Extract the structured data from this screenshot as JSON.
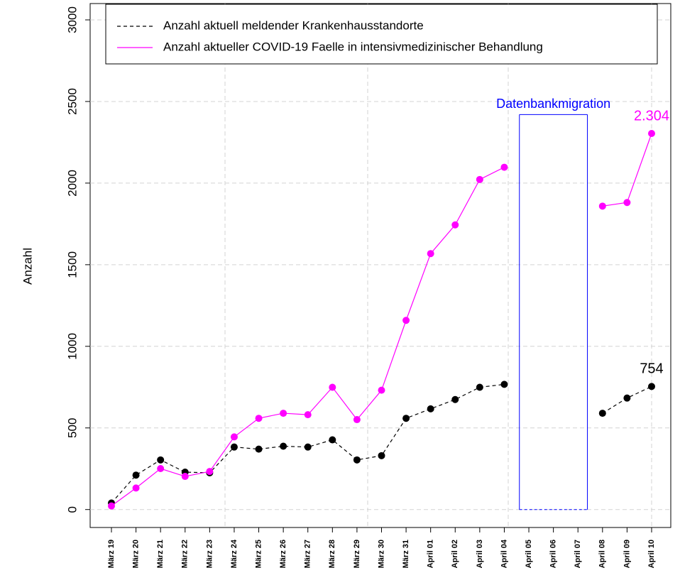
{
  "chart_data": {
    "type": "line",
    "ylabel": "Anzahl",
    "categories": [
      "März 19",
      "März 20",
      "März 21",
      "März 22",
      "März 23",
      "März 24",
      "März 25",
      "März 26",
      "März 27",
      "März 28",
      "März 29",
      "März 30",
      "März 31",
      "April 01",
      "April 02",
      "April 03",
      "April 04",
      "April 05",
      "April 06",
      "April 07",
      "April 08",
      "April 09",
      "April 10"
    ],
    "series": [
      {
        "name": "Anzahl aktuell meldender Krankenhausstandorte",
        "color": "#000000",
        "dash": true,
        "values": [
          40,
          211,
          304,
          229,
          225,
          383,
          370,
          388,
          383,
          427,
          304,
          330,
          559,
          617,
          674,
          749,
          767,
          null,
          null,
          null,
          590,
          683,
          754
        ],
        "value_labels": [
          null,
          null,
          null,
          null,
          null,
          null,
          null,
          null,
          null,
          null,
          null,
          null,
          null,
          null,
          null,
          null,
          null,
          null,
          null,
          null,
          null,
          null,
          "754"
        ]
      },
      {
        "name": "Anzahl aktueller COVID-19 Faelle in intensivmedizinischer Behandlung",
        "color": "#ff00ff",
        "dash": false,
        "values": [
          22,
          132,
          251,
          203,
          233,
          445,
          559,
          590,
          581,
          749,
          551,
          731,
          1159,
          1568,
          1744,
          2022,
          2097,
          null,
          null,
          null,
          1859,
          1881,
          2304
        ],
        "value_labels": [
          null,
          null,
          null,
          null,
          null,
          null,
          null,
          null,
          null,
          null,
          null,
          null,
          null,
          null,
          null,
          null,
          null,
          null,
          null,
          null,
          null,
          null,
          "2.304"
        ]
      }
    ],
    "ylim": [
      -110,
      3100
    ],
    "yticks": [
      0,
      500,
      1000,
      1500,
      2000,
      2500,
      3000
    ],
    "grid": true,
    "legend": "top",
    "annotation": {
      "text": "Datenbankmigration",
      "color": "#0000ff",
      "ylim": [
        0,
        2420
      ]
    }
  }
}
